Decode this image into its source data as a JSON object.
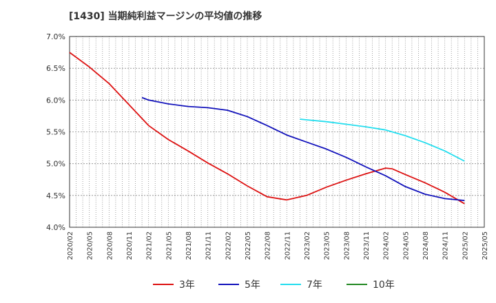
{
  "chart_data": {
    "type": "line",
    "title": "[1430]  当期純利益マージンの平均値の推移",
    "xlabel": "",
    "ylabel": "",
    "ylim": [
      4.0,
      7.0
    ],
    "grid": true,
    "legend_position": "bottom",
    "y_ticks": [
      "7.0%",
      "6.5%",
      "6.0%",
      "5.5%",
      "5.0%",
      "4.5%",
      "4.0%"
    ],
    "y_tick_values": [
      7.0,
      6.5,
      6.0,
      5.5,
      5.0,
      4.5,
      4.0
    ],
    "x_ticks": [
      "2020/02",
      "2020/05",
      "2020/08",
      "2020/11",
      "2021/02",
      "2021/05",
      "2021/08",
      "2021/11",
      "2022/02",
      "2022/05",
      "2022/08",
      "2022/11",
      "2023/02",
      "2023/05",
      "2023/08",
      "2023/11",
      "2024/02",
      "2024/05",
      "2024/08",
      "2024/11",
      "2025/02",
      "2025/05"
    ],
    "series": [
      {
        "name": "3年",
        "color": "#dd1111",
        "x": [
          "2020/02",
          "2020/05",
          "2020/08",
          "2020/11",
          "2021/02",
          "2021/05",
          "2021/08",
          "2021/11",
          "2022/02",
          "2022/05",
          "2022/08",
          "2022/11",
          "2023/02",
          "2023/05",
          "2023/08",
          "2023/11",
          "2024/01",
          "2024/02",
          "2024/03",
          "2024/05",
          "2024/08",
          "2024/11",
          "2025/02"
        ],
        "values": [
          6.75,
          6.52,
          6.26,
          5.93,
          5.6,
          5.38,
          5.2,
          5.01,
          4.84,
          4.65,
          4.48,
          4.43,
          4.5,
          4.63,
          4.74,
          4.84,
          4.9,
          4.93,
          4.92,
          4.83,
          4.7,
          4.55,
          4.37
        ]
      },
      {
        "name": "5年",
        "color": "#1111bb",
        "x": [
          "2021/01",
          "2021/02",
          "2021/05",
          "2021/08",
          "2021/11",
          "2022/02",
          "2022/05",
          "2022/08",
          "2022/11",
          "2023/02",
          "2023/05",
          "2023/08",
          "2023/11",
          "2024/02",
          "2024/05",
          "2024/08",
          "2024/11",
          "2025/02"
        ],
        "values": [
          6.04,
          6.0,
          5.94,
          5.9,
          5.88,
          5.84,
          5.74,
          5.6,
          5.45,
          5.34,
          5.23,
          5.1,
          4.95,
          4.81,
          4.64,
          4.52,
          4.45,
          4.42
        ]
      },
      {
        "name": "7年",
        "color": "#22ddee",
        "x": [
          "2023/01",
          "2023/02",
          "2023/05",
          "2023/08",
          "2023/11",
          "2024/02",
          "2024/05",
          "2024/08",
          "2024/11",
          "2025/02"
        ],
        "values": [
          5.7,
          5.69,
          5.66,
          5.62,
          5.58,
          5.53,
          5.44,
          5.33,
          5.2,
          5.04
        ]
      },
      {
        "name": "10年",
        "color": "#228822",
        "x": [],
        "values": []
      }
    ]
  }
}
